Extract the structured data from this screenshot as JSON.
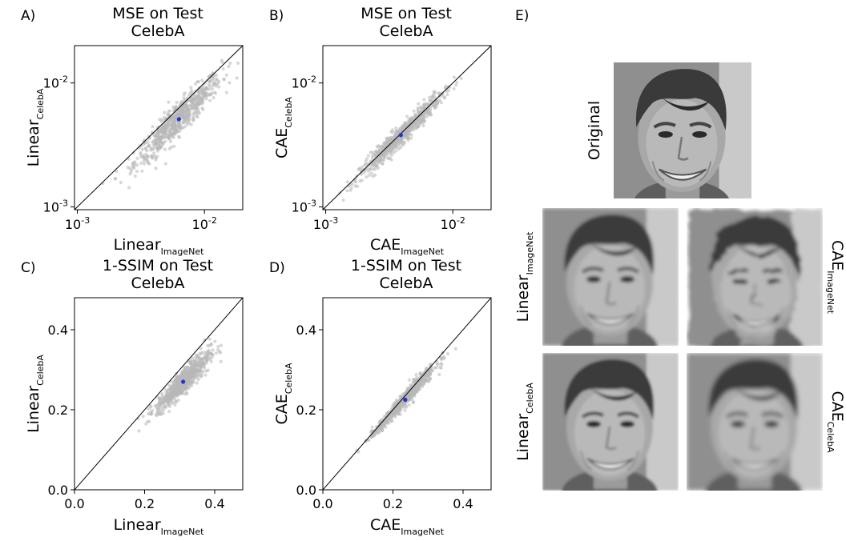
{
  "chart_data": [
    {
      "id": "A",
      "panel_label": "A)",
      "type": "scatter",
      "title_lines": [
        "MSE on Test",
        "CelebA"
      ],
      "xlabel": {
        "main": "Linear",
        "sub": "ImageNet"
      },
      "ylabel": {
        "main": "Linear",
        "sub": "CelebA"
      },
      "scale": "log",
      "xlim": [
        0.00095,
        0.02
      ],
      "ylim": [
        0.00095,
        0.02
      ],
      "ticks": [
        {
          "v": 0.001,
          "base": "10",
          "exp": "-3"
        },
        {
          "v": 0.01,
          "base": "10",
          "exp": "-2"
        }
      ],
      "diagonal": true,
      "cloud": {
        "x_median": 0.0062,
        "ratio_median": 0.82,
        "x_log_spread": 0.17,
        "ratio_log_spread": 0.065,
        "n": 700,
        "color": "#b8b8b8"
      },
      "highlight": {
        "x": 0.0063,
        "y": 0.0051,
        "color": "#2433d6"
      }
    },
    {
      "id": "B",
      "panel_label": "B)",
      "type": "scatter",
      "title_lines": [
        "MSE on Test",
        "CelebA"
      ],
      "xlabel": {
        "main": "CAE",
        "sub": "ImageNet"
      },
      "ylabel": {
        "main": "CAE",
        "sub": "CelebA"
      },
      "scale": "log",
      "xlim": [
        0.00095,
        0.02
      ],
      "ylim": [
        0.00095,
        0.02
      ],
      "ticks": [
        {
          "v": 0.001,
          "base": "10",
          "exp": "-3"
        },
        {
          "v": 0.01,
          "base": "10",
          "exp": "-2"
        }
      ],
      "diagonal": true,
      "cloud": {
        "x_median": 0.0039,
        "ratio_median": 0.97,
        "x_log_spread": 0.16,
        "ratio_log_spread": 0.04,
        "n": 700,
        "color": "#b8b8b8"
      },
      "highlight": {
        "x": 0.0039,
        "y": 0.0038,
        "color": "#2433d6"
      }
    },
    {
      "id": "C",
      "panel_label": "C)",
      "type": "scatter",
      "title_lines": [
        "1-SSIM on Test",
        "CelebA"
      ],
      "xlabel": {
        "main": "Linear",
        "sub": "ImageNet"
      },
      "ylabel": {
        "main": "Linear",
        "sub": "CelebA"
      },
      "scale": "linear",
      "xlim": [
        0,
        0.48
      ],
      "ylim": [
        0,
        0.48
      ],
      "ticks": [
        {
          "v": 0.0,
          "label": "0.0"
        },
        {
          "v": 0.2,
          "label": "0.2"
        },
        {
          "v": 0.4,
          "label": "0.4"
        }
      ],
      "diagonal": true,
      "cloud": {
        "x_median": 0.31,
        "ratio_median": 0.875,
        "x_spread": 0.038,
        "ratio_spread": 0.05,
        "n": 700,
        "color": "#b8b8b8"
      },
      "highlight": {
        "x": 0.31,
        "y": 0.27,
        "color": "#2433d6"
      }
    },
    {
      "id": "D",
      "panel_label": "D)",
      "type": "scatter",
      "title_lines": [
        "1-SSIM on Test",
        "CelebA"
      ],
      "xlabel": {
        "main": "CAE",
        "sub": "ImageNet"
      },
      "ylabel": {
        "main": "CAE",
        "sub": "CelebA"
      },
      "scale": "linear",
      "xlim": [
        0,
        0.48
      ],
      "ylim": [
        0,
        0.48
      ],
      "ticks": [
        {
          "v": 0.0,
          "label": "0.0"
        },
        {
          "v": 0.2,
          "label": "0.2"
        },
        {
          "v": 0.4,
          "label": "0.4"
        }
      ],
      "diagonal": true,
      "cloud": {
        "x_median": 0.23,
        "ratio_median": 0.97,
        "x_spread": 0.045,
        "ratio_spread": 0.04,
        "n": 700,
        "color": "#b8b8b8"
      },
      "highlight": {
        "x": 0.235,
        "y": 0.225,
        "color": "#2433d6"
      }
    }
  ],
  "panel_e": {
    "panel_label": "E)",
    "images": [
      {
        "id": "original",
        "label": {
          "main": "Original",
          "sub": ""
        },
        "label_side": "left",
        "style": "sharp"
      },
      {
        "id": "linear_imagenet",
        "label": {
          "main": "Linear",
          "sub": "ImageNet"
        },
        "label_side": "left",
        "style": "noisy"
      },
      {
        "id": "cae_imagenet",
        "label": {
          "main": "CAE",
          "sub": "ImageNet"
        },
        "label_side": "right",
        "style": "distorted"
      },
      {
        "id": "linear_celeba",
        "label": {
          "main": "Linear",
          "sub": "CelebA"
        },
        "label_side": "left",
        "style": "soft"
      },
      {
        "id": "cae_celeba",
        "label": {
          "main": "CAE",
          "sub": "CelebA"
        },
        "label_side": "right",
        "style": "blurry"
      }
    ]
  }
}
